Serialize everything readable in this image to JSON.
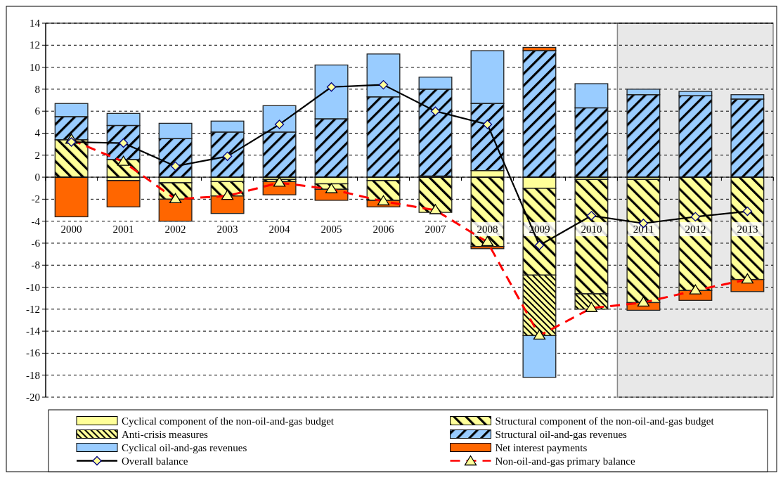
{
  "chart_data": {
    "type": "bar",
    "stacked": true,
    "categories": [
      "2000",
      "2001",
      "2002",
      "2003",
      "2004",
      "2005",
      "2006",
      "2007",
      "2008",
      "2009",
      "2010",
      "2011",
      "2012",
      "2013"
    ],
    "ylim": [
      -20,
      14
    ],
    "yticks": [
      -20,
      -18,
      -16,
      -14,
      -12,
      -10,
      -8,
      -6,
      -4,
      -2,
      0,
      2,
      4,
      6,
      8,
      10,
      12,
      14
    ],
    "grid": "y",
    "legend": "bottom",
    "bands": [
      {
        "axis": "x",
        "from": "2011",
        "to": "2013",
        "color": "#e8e8e8"
      }
    ],
    "series": [
      {
        "name": "Cyclical component of the non-oil-and-gas budget",
        "color": "#ffff99",
        "values": [
          0,
          -0.3,
          -0.5,
          -0.4,
          -0.2,
          -0.6,
          -0.3,
          0.1,
          0.6,
          -1.0,
          -0.2,
          -0.2,
          0,
          0
        ]
      },
      {
        "name": "Structural component of the non-oil-and-gas budget",
        "color": "#ffff99",
        "values": [
          3.4,
          1.6,
          -1.5,
          -1.3,
          -0.2,
          -0.5,
          -1.8,
          -3.2,
          -6.3,
          -7.9,
          -10.4,
          -11.2,
          -10.3,
          -9.3
        ]
      },
      {
        "name": "Anti-crisis measures",
        "color": "#ffff99",
        "values": [
          0,
          0,
          0,
          0,
          0,
          0,
          0,
          0,
          0,
          -5.5,
          -1.4,
          0,
          0,
          0
        ]
      },
      {
        "name": "Structural oil-and-gas revenues",
        "color": "#99ccff",
        "values": [
          2.1,
          3.1,
          3.5,
          4.1,
          4.1,
          5.3,
          7.3,
          7.9,
          6.1,
          11.5,
          6.3,
          7.5,
          7.4,
          7.1
        ]
      },
      {
        "name": "Cyclical oil-and-gas revenues",
        "color": "#99ccff",
        "values": [
          1.2,
          1.1,
          1.4,
          1.0,
          2.4,
          4.9,
          3.9,
          1.1,
          4.8,
          -3.8,
          2.2,
          0.5,
          0.4,
          0.4
        ]
      },
      {
        "name": "Net interest payments",
        "color": "#ff6600",
        "values": [
          -3.6,
          -2.4,
          -2.0,
          -1.6,
          -1.2,
          -1.0,
          -0.6,
          0,
          -0.2,
          0.3,
          0,
          -0.7,
          -0.9,
          -1.1
        ]
      },
      {
        "name": "Overall balance",
        "type": "line",
        "color": "#000000",
        "marker": "diamond",
        "line_style": "solid",
        "values": [
          3.2,
          3.1,
          1.0,
          1.9,
          4.8,
          8.2,
          8.4,
          6.0,
          4.8,
          -6.2,
          -3.5,
          -4.2,
          -3.6,
          -3.1
        ]
      },
      {
        "name": "Non-oil-and-gas primary balance",
        "type": "line",
        "color": "#ff0000",
        "marker": "triangle",
        "line_style": "dashed",
        "values": [
          3.4,
          1.4,
          -2.0,
          -1.7,
          -0.5,
          -1.1,
          -2.2,
          -3.0,
          -5.9,
          -14.4,
          -11.9,
          -11.4,
          -10.3,
          -9.3
        ]
      }
    ]
  }
}
